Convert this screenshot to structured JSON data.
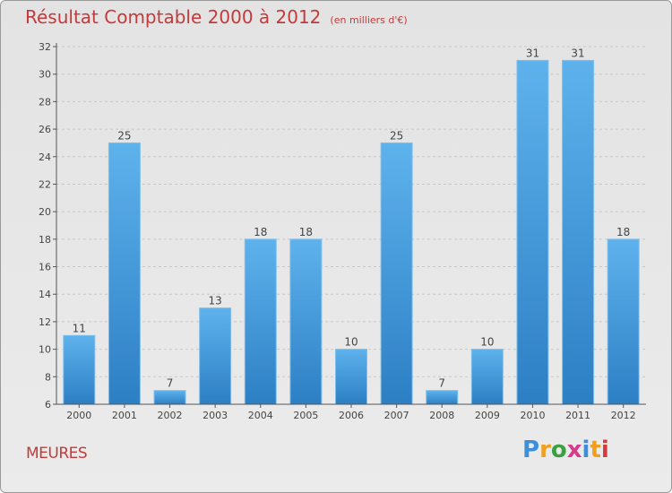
{
  "title": "Résultat Comptable 2000 à 2012",
  "unit_note": "(en milliers d'€)",
  "city": "MEURES",
  "logo": {
    "letters": [
      {
        "ch": "P",
        "color": "#3c8fd8"
      },
      {
        "ch": "r",
        "color": "#f0a020"
      },
      {
        "ch": "o",
        "color": "#3aa040"
      },
      {
        "ch": "x",
        "color": "#d63a8a"
      },
      {
        "ch": "i",
        "color": "#3c8fd8"
      },
      {
        "ch": "t",
        "color": "#f0a020"
      },
      {
        "ch": "i",
        "color": "#d63a3a"
      }
    ]
  },
  "chart_data": {
    "type": "bar",
    "title": "Résultat Comptable 2000 à 2012",
    "categories": [
      "2000",
      "2001",
      "2002",
      "2003",
      "2004",
      "2005",
      "2006",
      "2007",
      "2008",
      "2009",
      "2010",
      "2011",
      "2012"
    ],
    "values": [
      11,
      25,
      7,
      13,
      18,
      18,
      10,
      25,
      7,
      10,
      31,
      31,
      18
    ],
    "ylim": [
      6,
      32
    ],
    "yticks": [
      6,
      8,
      10,
      12,
      14,
      16,
      18,
      20,
      22,
      24,
      26,
      28,
      30,
      32
    ],
    "grid": "horizontal dashed",
    "bar_color": "#3a8fd6",
    "xlabel": "",
    "ylabel": ""
  }
}
